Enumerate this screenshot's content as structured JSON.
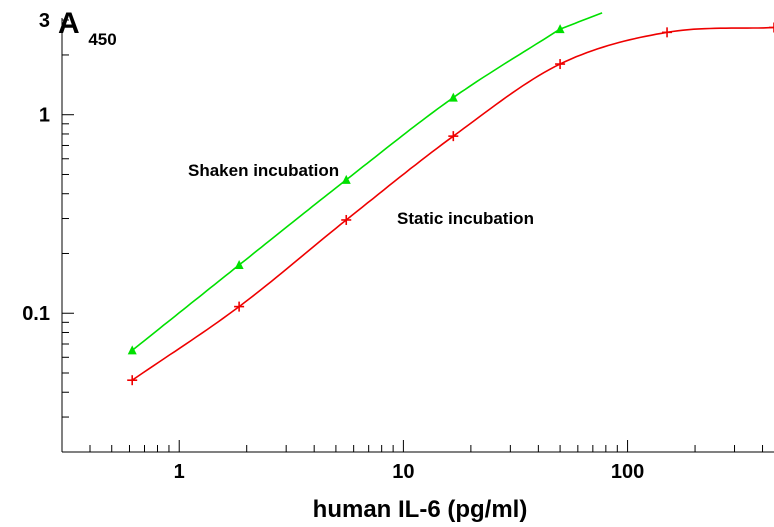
{
  "chart_data": {
    "type": "line",
    "ylabel_main": "A",
    "ylabel_sub": "450",
    "xlabel": "human IL-6  (pg/ml)",
    "xscale": "log",
    "yscale": "log",
    "xlim": [
      0.3,
      450
    ],
    "ylim": [
      0.02,
      3
    ],
    "x_ticks": [
      1,
      10,
      100
    ],
    "x_tick_labels": [
      "1",
      "10",
      "100"
    ],
    "y_ticks": [
      0.1,
      1,
      3
    ],
    "y_tick_labels": [
      "0.1",
      "1",
      "3"
    ],
    "series": [
      {
        "name": "Shaken incubation",
        "color": "#00e000",
        "marker": "triangle",
        "x": [
          0.617,
          1.85,
          5.56,
          16.7,
          50
        ],
        "y": [
          0.065,
          0.175,
          0.47,
          1.22,
          2.7
        ],
        "curve_x_max": 77
      },
      {
        "name": "Static incubation",
        "color": "#ee0000",
        "marker": "plus",
        "x": [
          0.617,
          1.85,
          5.56,
          16.7,
          50,
          150,
          450
        ],
        "y": [
          0.046,
          0.108,
          0.295,
          0.78,
          1.8,
          2.6,
          2.75
        ],
        "curve_x_max": 450
      }
    ],
    "annotations": [
      "Shaken incubation",
      "Static incubation"
    ]
  }
}
